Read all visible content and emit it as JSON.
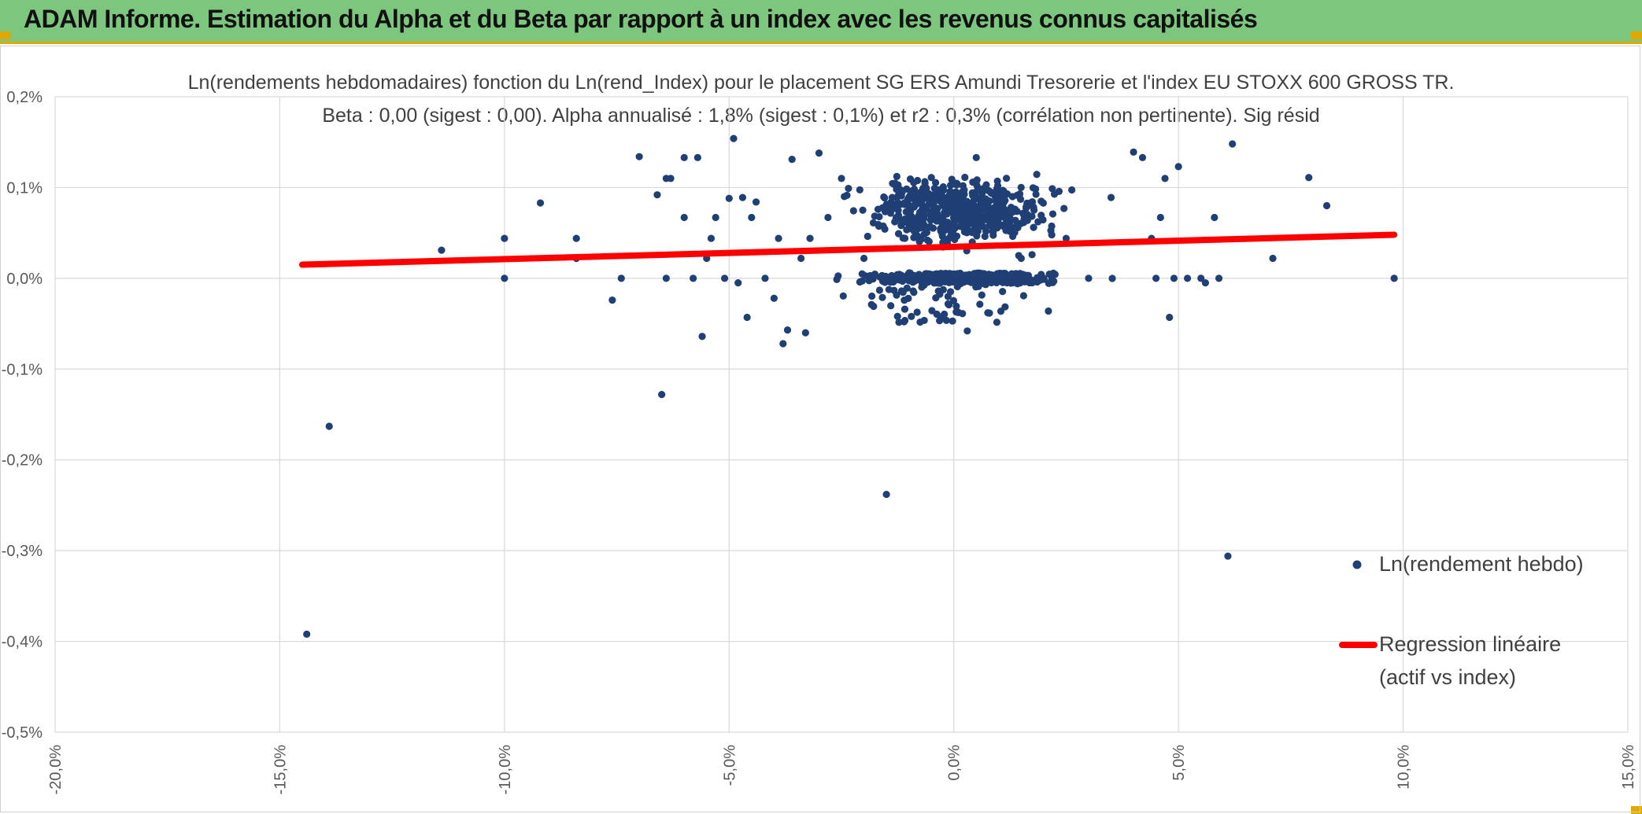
{
  "header": {
    "title": "ADAM Informe. Estimation du Alpha et du Beta par rapport à un index avec les revenus connus capitalisés",
    "background": "#7dc67e",
    "accent": "#e0a800"
  },
  "chart_data": {
    "type": "scatter",
    "title_line1": "Ln(rendements hebdomadaires) fonction du Ln(rend_Index) pour le placement SG ERS Amundi Tresorerie  et l'index EU STOXX 600 GROSS TR.",
    "title_line2": "Beta : 0,00 (sigest : 0,00). Alpha annualisé : 1,8% (sigest : 0,1%) et r2 : 0,3% (corrélation non pertinente). Sig résid",
    "xlim": [
      -20,
      15
    ],
    "ylim": [
      -0.5,
      0.2
    ],
    "x_ticks": [
      -20,
      -15,
      -10,
      -5,
      0,
      5,
      10,
      15
    ],
    "x_tick_labels": [
      "-20,0%",
      "-15,0%",
      "-10,0%",
      "-5,0%",
      "0,0%",
      "5,0%",
      "10,0%",
      "15,0%"
    ],
    "y_ticks": [
      0.2,
      0.1,
      0.0,
      -0.1,
      -0.2,
      -0.3,
      -0.4,
      -0.5
    ],
    "y_tick_labels": [
      "0,2%",
      "0,1%",
      "0,0%",
      "-0,1%",
      "-0,2%",
      "-0,3%",
      "-0,4%",
      "-0,5%"
    ],
    "grid": true,
    "legend_position": "bottom-right",
    "series": [
      {
        "name": "Ln(rendement hebdo)",
        "kind": "scatter",
        "color": "#1f3f75",
        "points": [
          [
            -14.4,
            -0.392
          ],
          [
            -13.9,
            -0.163
          ],
          [
            -11.4,
            0.031
          ],
          [
            -10.0,
            0.044
          ],
          [
            -10.0,
            0.0
          ],
          [
            -9.2,
            0.083
          ],
          [
            -8.4,
            0.044
          ],
          [
            -8.4,
            0.022
          ],
          [
            -7.6,
            -0.024
          ],
          [
            -7.4,
            0.0
          ],
          [
            -7.0,
            0.134
          ],
          [
            -6.6,
            0.092
          ],
          [
            -6.5,
            -0.128
          ],
          [
            -6.4,
            0.11
          ],
          [
            -6.4,
            0.0
          ],
          [
            -6.3,
            0.11
          ],
          [
            -6.0,
            0.133
          ],
          [
            -6.0,
            0.067
          ],
          [
            -5.8,
            0.0
          ],
          [
            -5.7,
            0.133
          ],
          [
            -5.6,
            -0.064
          ],
          [
            -5.5,
            0.022
          ],
          [
            -5.4,
            0.044
          ],
          [
            -5.3,
            0.067
          ],
          [
            -5.1,
            0.0
          ],
          [
            -5.0,
            0.088
          ],
          [
            -4.9,
            0.154
          ],
          [
            -4.8,
            -0.005
          ],
          [
            -4.7,
            0.089
          ],
          [
            -4.6,
            -0.043
          ],
          [
            -4.5,
            0.067
          ],
          [
            -4.4,
            0.084
          ],
          [
            -4.2,
            0.0
          ],
          [
            -4.0,
            -0.022
          ],
          [
            -3.9,
            0.044
          ],
          [
            -3.8,
            -0.072
          ],
          [
            -3.7,
            -0.057
          ],
          [
            -3.6,
            0.131
          ],
          [
            -3.4,
            0.022
          ],
          [
            -3.3,
            -0.06
          ],
          [
            -3.2,
            0.044
          ],
          [
            -3.0,
            0.138
          ],
          [
            -2.8,
            0.067
          ],
          [
            -2.5,
            0.11
          ],
          [
            -2.0,
            0.022
          ],
          [
            -1.5,
            -0.238
          ],
          [
            -1.2,
            0.0
          ],
          [
            -1.0,
            0.089
          ],
          [
            -0.5,
            0.111
          ],
          [
            0.0,
            0.0
          ],
          [
            0.3,
            -0.058
          ],
          [
            0.5,
            0.133
          ],
          [
            1.0,
            0.067
          ],
          [
            1.5,
            0.022
          ],
          [
            2.0,
            0.0
          ],
          [
            2.5,
            0.044
          ],
          [
            3.0,
            0.0
          ],
          [
            3.5,
            0.089
          ],
          [
            4.0,
            0.139
          ],
          [
            4.2,
            0.133
          ],
          [
            4.4,
            0.044
          ],
          [
            4.5,
            0.0
          ],
          [
            4.6,
            0.067
          ],
          [
            4.7,
            0.11
          ],
          [
            4.8,
            -0.043
          ],
          [
            4.9,
            0.0
          ],
          [
            5.0,
            0.123
          ],
          [
            5.2,
            0.0
          ],
          [
            5.5,
            0.0
          ],
          [
            5.6,
            -0.005
          ],
          [
            5.8,
            0.067
          ],
          [
            5.9,
            0.0
          ],
          [
            6.1,
            -0.306
          ],
          [
            6.2,
            0.148
          ],
          [
            7.1,
            0.022
          ],
          [
            7.9,
            0.111
          ],
          [
            8.3,
            0.08
          ],
          [
            9.8,
            0.0
          ]
        ]
      },
      {
        "name": "Regression linéaire (actif vs index)",
        "label_line1": "Regression linéaire",
        "label_line2": "(actif vs index)",
        "kind": "line",
        "color": "#ff0000",
        "x": [
          -14.5,
          9.8
        ],
        "y": [
          0.015,
          0.048
        ]
      }
    ]
  }
}
